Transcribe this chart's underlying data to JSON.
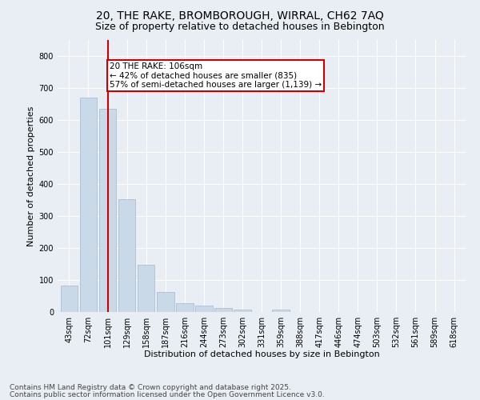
{
  "title_line1": "20, THE RAKE, BROMBOROUGH, WIRRAL, CH62 7AQ",
  "title_line2": "Size of property relative to detached houses in Bebington",
  "xlabel": "Distribution of detached houses by size in Bebington",
  "ylabel": "Number of detached properties",
  "categories": [
    "43sqm",
    "72sqm",
    "101sqm",
    "129sqm",
    "158sqm",
    "187sqm",
    "216sqm",
    "244sqm",
    "273sqm",
    "302sqm",
    "331sqm",
    "359sqm",
    "388sqm",
    "417sqm",
    "446sqm",
    "474sqm",
    "503sqm",
    "532sqm",
    "561sqm",
    "589sqm",
    "618sqm"
  ],
  "values": [
    83,
    670,
    635,
    353,
    148,
    62,
    27,
    20,
    13,
    8,
    0,
    8,
    0,
    0,
    0,
    0,
    0,
    0,
    0,
    0,
    0
  ],
  "bar_color": "#c9d9e8",
  "bar_edgecolor": "#a0b8cc",
  "vline_x": 2,
  "vline_color": "#cc0000",
  "annotation_text": "20 THE RAKE: 106sqm\n← 42% of detached houses are smaller (835)\n57% of semi-detached houses are larger (1,139) →",
  "annotation_box_color": "#ffffff",
  "annotation_box_edgecolor": "#cc0000",
  "ylim": [
    0,
    850
  ],
  "yticks": [
    0,
    100,
    200,
    300,
    400,
    500,
    600,
    700,
    800
  ],
  "background_color": "#e8eef4",
  "plot_background": "#e8eef4",
  "footer_line1": "Contains HM Land Registry data © Crown copyright and database right 2025.",
  "footer_line2": "Contains public sector information licensed under the Open Government Licence v3.0.",
  "title_fontsize": 10,
  "subtitle_fontsize": 9,
  "axis_label_fontsize": 8,
  "tick_fontsize": 7,
  "annotation_fontsize": 7.5,
  "footer_fontsize": 6.5
}
